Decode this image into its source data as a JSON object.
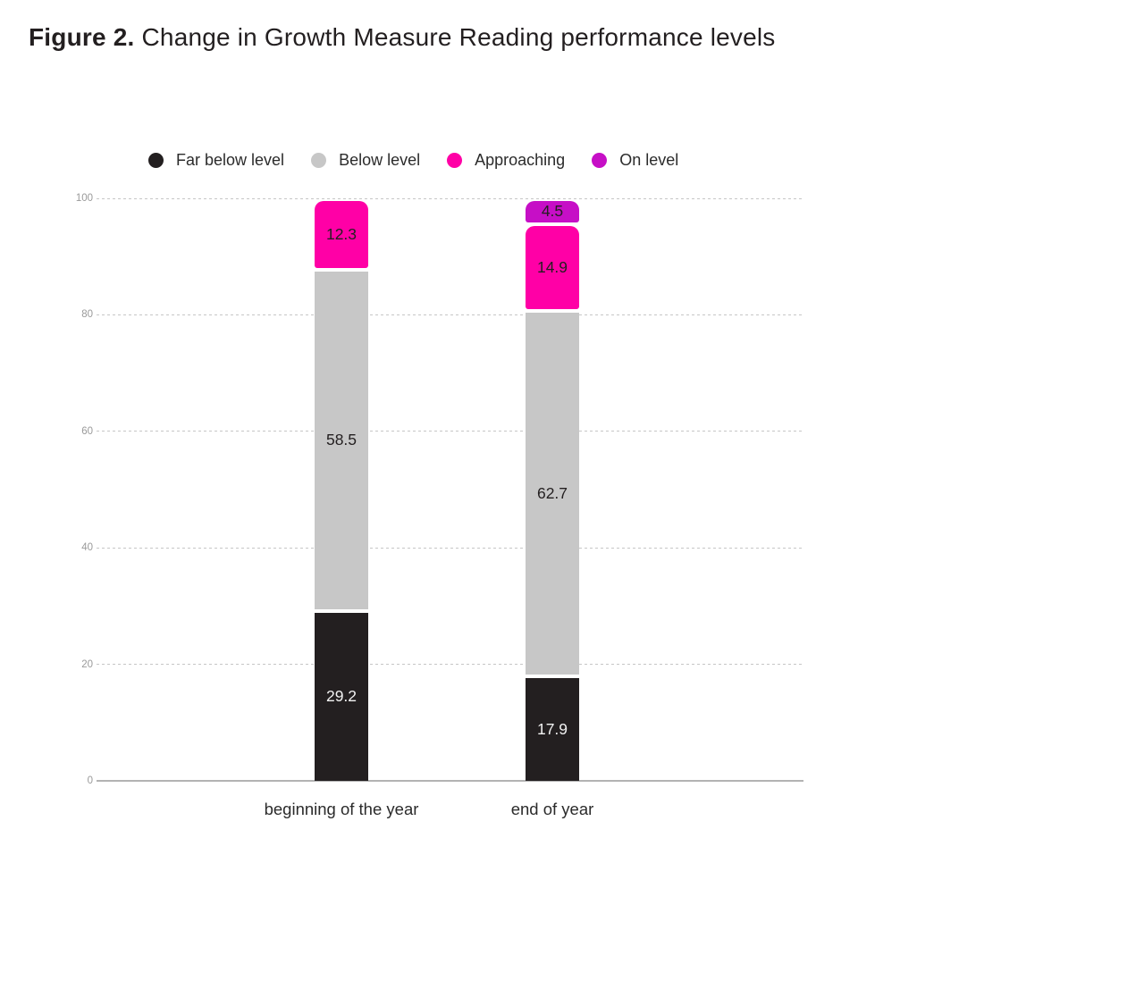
{
  "figure": {
    "title_prefix": "Figure 2.",
    "title_text": "Change in Growth Measure Reading performance levels"
  },
  "chart_data": {
    "type": "bar",
    "stacked": true,
    "title": "Figure 2. Change in Growth Measure Reading performance levels",
    "categories": [
      "beginning of the year",
      "end of year"
    ],
    "series": [
      {
        "name": "Far below level",
        "color": "#231f20",
        "label_color": "#f2f2f2",
        "rounded_top": false,
        "values": [
          29.2,
          17.9
        ]
      },
      {
        "name": "Below level",
        "color": "#c7c7c7",
        "label_color": "#231f20",
        "rounded_top": false,
        "values": [
          58.5,
          62.7
        ]
      },
      {
        "name": "Approaching",
        "color": "#ff00a6",
        "label_color": "#231f20",
        "rounded_top": true,
        "values": [
          12.3,
          14.9
        ]
      },
      {
        "name": "On level",
        "color": "#c60fc6",
        "label_color": "#231f20",
        "rounded_top": true,
        "values": [
          0,
          4.5
        ]
      }
    ],
    "xlabel": "",
    "ylabel": "",
    "ylim": [
      0,
      100
    ],
    "yticks": [
      0,
      20,
      40,
      60,
      80,
      100
    ],
    "grid": "horizontal-dashed",
    "legend_position": "top",
    "style": {
      "grid_color": "#c6c6c6",
      "axis_color": "#b3b3b3",
      "tick_label_color": "#9a9a9a",
      "category_label_color": "#2b2b2b",
      "legend_text_color": "#2b2b2b"
    }
  }
}
